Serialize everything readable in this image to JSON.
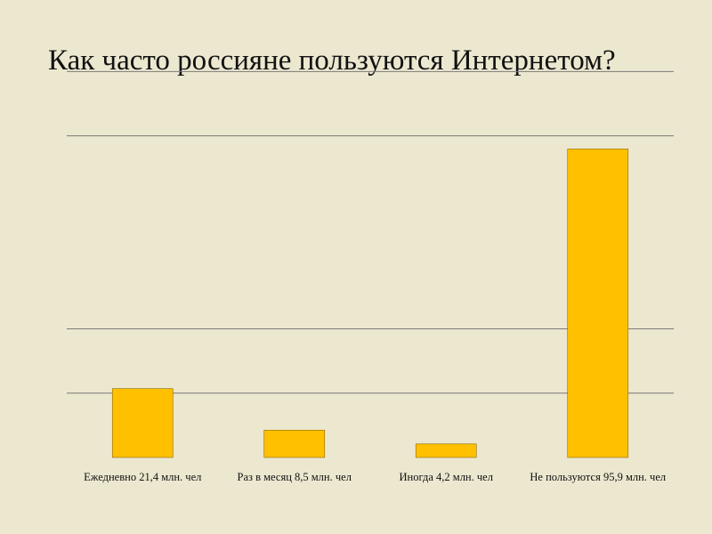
{
  "slide": {
    "title": "Как часто россияне пользуются Интернетом?"
  },
  "chart_data": {
    "type": "bar",
    "title": "",
    "xlabel": "",
    "ylabel": "",
    "categories": [
      "Ежедневно 21,4 млн. чел",
      "Раз в месяц 8,5 млн. чел",
      "Иногда 4,2 млн. чел",
      "Не пользуются 95,9 млн. чел"
    ],
    "values": [
      21.4,
      8.5,
      4.2,
      95.9
    ],
    "units": "млн. чел",
    "ylim": [
      0,
      120
    ],
    "gridlines": [
      20,
      40,
      100,
      120
    ],
    "grid": true,
    "legend": "none",
    "bar_color": "#ffc000",
    "bar_outline": "#8a6a00",
    "gridline_color": "#7a7a7a"
  }
}
